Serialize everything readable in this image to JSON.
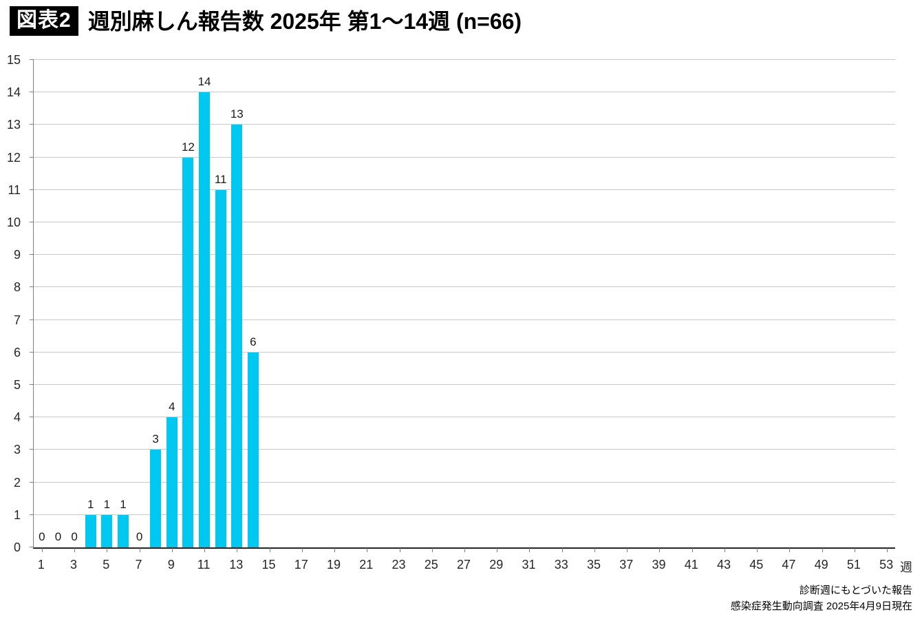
{
  "header": {
    "badge": "図表2",
    "title": "週別麻しん報告数 2025年 第1〜14週 (n=66)"
  },
  "chart_data": {
    "type": "bar",
    "title": "週別麻しん報告数 2025年 第1〜14週 (n=66)",
    "n_total": 66,
    "xlabel": "週",
    "ylabel": "",
    "weeks_total": 53,
    "x_tick_interval": 2,
    "x_tick_labels": [
      1,
      3,
      5,
      7,
      9,
      11,
      13,
      15,
      17,
      19,
      21,
      23,
      25,
      27,
      29,
      31,
      33,
      35,
      37,
      39,
      41,
      43,
      45,
      47,
      49,
      51,
      53
    ],
    "categories": [
      1,
      2,
      3,
      4,
      5,
      6,
      7,
      8,
      9,
      10,
      11,
      12,
      13,
      14
    ],
    "values": [
      0,
      0,
      0,
      1,
      1,
      1,
      0,
      3,
      4,
      12,
      14,
      11,
      13,
      6
    ],
    "data_labels": [
      "0",
      "0",
      "0",
      "1",
      "1",
      "1",
      "0",
      "3",
      "4",
      "12",
      "14",
      "11",
      "13",
      "6"
    ],
    "ylim": [
      0,
      15
    ],
    "y_tick_step": 1,
    "grid": true,
    "bar_color": "#00c8f0",
    "legend": "none"
  },
  "footer": {
    "line1": "診断週にもとづいた報告",
    "line2": "感染症発生動向調査 2025年4月9日現在"
  }
}
